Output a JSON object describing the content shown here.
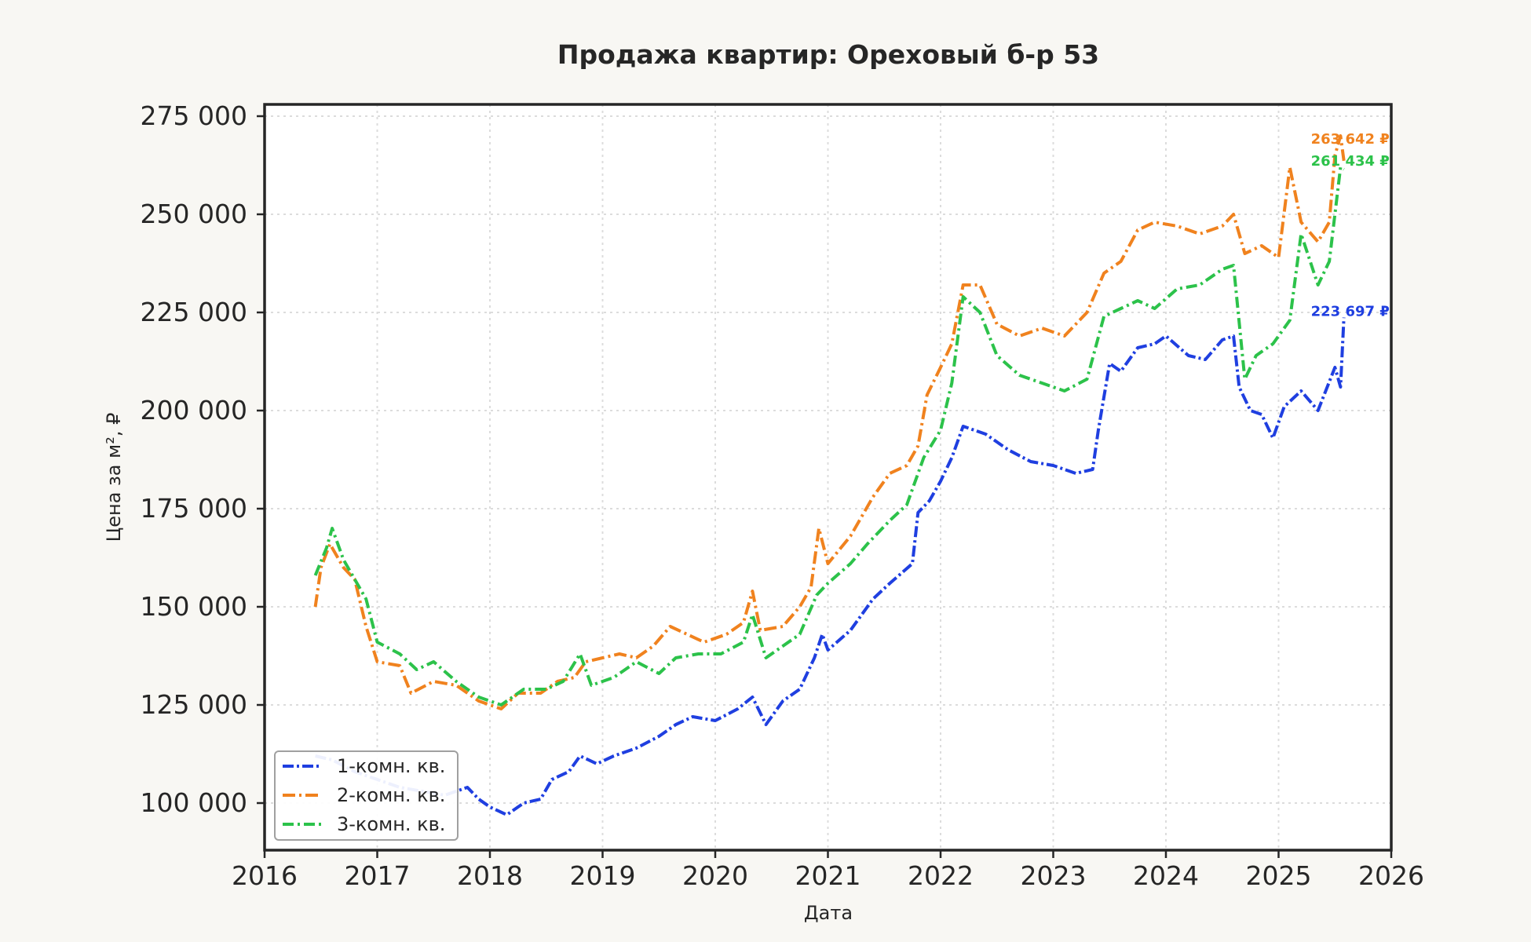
{
  "chart_data": {
    "type": "line",
    "title": "Продажа квартир: Ореховый б-р 53",
    "xlabel": "Дата",
    "ylabel": "Цена за м², ₽",
    "xlim": [
      2016.0,
      2026.0
    ],
    "ylim": [
      88000,
      278000
    ],
    "x_ticks": [
      2016,
      2017,
      2018,
      2019,
      2020,
      2021,
      2022,
      2023,
      2024,
      2025,
      2026
    ],
    "y_ticks": [
      100000,
      125000,
      150000,
      175000,
      200000,
      225000,
      250000,
      275000
    ],
    "x_tick_labels": [
      "2016",
      "2017",
      "2018",
      "2019",
      "2020",
      "2021",
      "2022",
      "2023",
      "2024",
      "2025",
      "2026"
    ],
    "y_tick_labels": [
      "100 000",
      "125 000",
      "150 000",
      "175 000",
      "200 000",
      "225 000",
      "250 000",
      "275 000"
    ],
    "grid": true,
    "legend_position": "lower-left",
    "series": [
      {
        "name": "1-комн. кв.",
        "color": "#1f3fe0",
        "end_label": "223 697 ₽",
        "points": [
          [
            2016.45,
            112000
          ],
          [
            2016.6,
            111000
          ],
          [
            2016.8,
            108000
          ],
          [
            2017.0,
            106000
          ],
          [
            2017.2,
            104000
          ],
          [
            2017.4,
            103000
          ],
          [
            2017.6,
            102000
          ],
          [
            2017.8,
            104000
          ],
          [
            2017.9,
            101000
          ],
          [
            2018.0,
            99000
          ],
          [
            2018.15,
            97000
          ],
          [
            2018.3,
            100000
          ],
          [
            2018.45,
            101000
          ],
          [
            2018.55,
            106000
          ],
          [
            2018.7,
            108000
          ],
          [
            2018.8,
            112000
          ],
          [
            2018.95,
            110000
          ],
          [
            2019.1,
            112000
          ],
          [
            2019.3,
            114000
          ],
          [
            2019.5,
            117000
          ],
          [
            2019.65,
            120000
          ],
          [
            2019.8,
            122000
          ],
          [
            2020.0,
            121000
          ],
          [
            2020.2,
            124000
          ],
          [
            2020.33,
            127000
          ],
          [
            2020.45,
            120000
          ],
          [
            2020.6,
            126000
          ],
          [
            2020.75,
            129000
          ],
          [
            2020.88,
            137000
          ],
          [
            2020.95,
            143000
          ],
          [
            2021.0,
            139000
          ],
          [
            2021.2,
            144000
          ],
          [
            2021.4,
            152000
          ],
          [
            2021.55,
            156000
          ],
          [
            2021.75,
            161000
          ],
          [
            2021.8,
            174000
          ],
          [
            2021.9,
            177000
          ],
          [
            2022.0,
            182000
          ],
          [
            2022.1,
            188000
          ],
          [
            2022.2,
            196000
          ],
          [
            2022.4,
            194000
          ],
          [
            2022.6,
            190000
          ],
          [
            2022.8,
            187000
          ],
          [
            2023.0,
            186000
          ],
          [
            2023.2,
            184000
          ],
          [
            2023.35,
            185000
          ],
          [
            2023.4,
            195000
          ],
          [
            2023.5,
            212000
          ],
          [
            2023.6,
            210000
          ],
          [
            2023.75,
            216000
          ],
          [
            2023.9,
            217000
          ],
          [
            2024.0,
            219000
          ],
          [
            2024.2,
            214000
          ],
          [
            2024.35,
            213000
          ],
          [
            2024.5,
            218000
          ],
          [
            2024.6,
            219000
          ],
          [
            2024.65,
            206000
          ],
          [
            2024.75,
            200000
          ],
          [
            2024.85,
            199000
          ],
          [
            2024.95,
            193000
          ],
          [
            2025.05,
            201000
          ],
          [
            2025.2,
            205000
          ],
          [
            2025.35,
            200000
          ],
          [
            2025.5,
            211000
          ],
          [
            2025.55,
            206000
          ],
          [
            2025.58,
            223697
          ]
        ]
      },
      {
        "name": "2-комн. кв.",
        "color": "#f0821e",
        "end_label": "263 642 ₽",
        "points": [
          [
            2016.45,
            150000
          ],
          [
            2016.5,
            160000
          ],
          [
            2016.58,
            166000
          ],
          [
            2016.7,
            160000
          ],
          [
            2016.8,
            157000
          ],
          [
            2016.9,
            145000
          ],
          [
            2017.0,
            136000
          ],
          [
            2017.2,
            135000
          ],
          [
            2017.3,
            128000
          ],
          [
            2017.5,
            131000
          ],
          [
            2017.7,
            130000
          ],
          [
            2017.9,
            126000
          ],
          [
            2018.1,
            124000
          ],
          [
            2018.25,
            128000
          ],
          [
            2018.45,
            128000
          ],
          [
            2018.6,
            131000
          ],
          [
            2018.75,
            132000
          ],
          [
            2018.85,
            136000
          ],
          [
            2019.0,
            137000
          ],
          [
            2019.15,
            138000
          ],
          [
            2019.3,
            137000
          ],
          [
            2019.45,
            140000
          ],
          [
            2019.6,
            145000
          ],
          [
            2019.75,
            143000
          ],
          [
            2019.9,
            141000
          ],
          [
            2020.1,
            143000
          ],
          [
            2020.25,
            146000
          ],
          [
            2020.33,
            154000
          ],
          [
            2020.4,
            144000
          ],
          [
            2020.6,
            145000
          ],
          [
            2020.75,
            150000
          ],
          [
            2020.85,
            155000
          ],
          [
            2020.92,
            170000
          ],
          [
            2021.0,
            161000
          ],
          [
            2021.2,
            168000
          ],
          [
            2021.4,
            178000
          ],
          [
            2021.55,
            184000
          ],
          [
            2021.7,
            186000
          ],
          [
            2021.8,
            191000
          ],
          [
            2021.88,
            204000
          ],
          [
            2022.0,
            211000
          ],
          [
            2022.1,
            217000
          ],
          [
            2022.2,
            232000
          ],
          [
            2022.35,
            232000
          ],
          [
            2022.5,
            222000
          ],
          [
            2022.7,
            219000
          ],
          [
            2022.9,
            221000
          ],
          [
            2023.1,
            219000
          ],
          [
            2023.3,
            225000
          ],
          [
            2023.45,
            235000
          ],
          [
            2023.6,
            238000
          ],
          [
            2023.75,
            246000
          ],
          [
            2023.9,
            248000
          ],
          [
            2024.1,
            247000
          ],
          [
            2024.3,
            245000
          ],
          [
            2024.5,
            247000
          ],
          [
            2024.6,
            250000
          ],
          [
            2024.7,
            240000
          ],
          [
            2024.85,
            242000
          ],
          [
            2025.0,
            239000
          ],
          [
            2025.1,
            262000
          ],
          [
            2025.2,
            248000
          ],
          [
            2025.35,
            243000
          ],
          [
            2025.45,
            248000
          ],
          [
            2025.5,
            265000
          ],
          [
            2025.55,
            270000
          ],
          [
            2025.58,
            263642
          ]
        ]
      },
      {
        "name": "3-комн. кв.",
        "color": "#2cc24a",
        "end_label": "261 434 ₽",
        "points": [
          [
            2016.45,
            158000
          ],
          [
            2016.55,
            165000
          ],
          [
            2016.6,
            170000
          ],
          [
            2016.7,
            162000
          ],
          [
            2016.8,
            157000
          ],
          [
            2016.9,
            152000
          ],
          [
            2017.0,
            141000
          ],
          [
            2017.2,
            138000
          ],
          [
            2017.35,
            134000
          ],
          [
            2017.5,
            136000
          ],
          [
            2017.7,
            131000
          ],
          [
            2017.9,
            127000
          ],
          [
            2018.1,
            125000
          ],
          [
            2018.3,
            129000
          ],
          [
            2018.5,
            129000
          ],
          [
            2018.65,
            131000
          ],
          [
            2018.8,
            138000
          ],
          [
            2018.9,
            130000
          ],
          [
            2019.1,
            132000
          ],
          [
            2019.3,
            136000
          ],
          [
            2019.5,
            133000
          ],
          [
            2019.65,
            137000
          ],
          [
            2019.85,
            138000
          ],
          [
            2020.05,
            138000
          ],
          [
            2020.25,
            141000
          ],
          [
            2020.33,
            148000
          ],
          [
            2020.45,
            137000
          ],
          [
            2020.6,
            140000
          ],
          [
            2020.75,
            143000
          ],
          [
            2020.9,
            153000
          ],
          [
            2021.0,
            156000
          ],
          [
            2021.2,
            161000
          ],
          [
            2021.35,
            166000
          ],
          [
            2021.55,
            172000
          ],
          [
            2021.7,
            176000
          ],
          [
            2021.85,
            188000
          ],
          [
            2022.0,
            195000
          ],
          [
            2022.1,
            207000
          ],
          [
            2022.2,
            229000
          ],
          [
            2022.35,
            225000
          ],
          [
            2022.5,
            214000
          ],
          [
            2022.7,
            209000
          ],
          [
            2022.9,
            207000
          ],
          [
            2023.1,
            205000
          ],
          [
            2023.3,
            208000
          ],
          [
            2023.45,
            224000
          ],
          [
            2023.6,
            226000
          ],
          [
            2023.75,
            228000
          ],
          [
            2023.9,
            226000
          ],
          [
            2024.1,
            231000
          ],
          [
            2024.3,
            232000
          ],
          [
            2024.5,
            236000
          ],
          [
            2024.6,
            237000
          ],
          [
            2024.7,
            208000
          ],
          [
            2024.8,
            214000
          ],
          [
            2024.95,
            217000
          ],
          [
            2025.1,
            223000
          ],
          [
            2025.2,
            245000
          ],
          [
            2025.35,
            232000
          ],
          [
            2025.45,
            238000
          ],
          [
            2025.55,
            262000
          ],
          [
            2025.58,
            261434
          ]
        ]
      }
    ]
  }
}
